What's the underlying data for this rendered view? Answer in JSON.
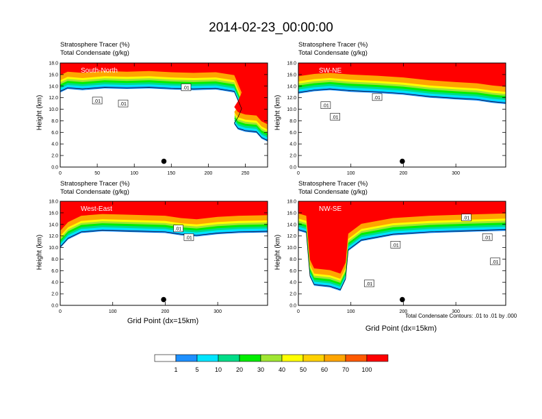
{
  "figure": {
    "title": "2014-02-23_00:00:00",
    "footnote": "Total Condensate Contours: .01 to .01 by .000"
  },
  "colorbar": {
    "colors": [
      "#ffffff",
      "#1e90ff",
      "#00e5ff",
      "#00dd88",
      "#00ee00",
      "#a0e632",
      "#ffff00",
      "#ffd100",
      "#ffa500",
      "#ff5a00",
      "#ff0000"
    ],
    "labels": [
      "1",
      "5",
      "10",
      "20",
      "30",
      "40",
      "50",
      "60",
      "70",
      "100"
    ]
  },
  "chart_data": [
    {
      "type": "heatmap",
      "label_left": "Stratosphere Tracer   (%)",
      "label_left2": "Total Condensate   (g/kg)",
      "panel_title": "South-North",
      "ylabel": "Height (km)",
      "xlabel": "",
      "xlim": [
        0,
        280
      ],
      "ylim": [
        0,
        18
      ],
      "xticks": [
        "0",
        "50",
        "100",
        "150",
        "200",
        "250"
      ],
      "xtick_values": [
        0,
        50,
        100,
        150,
        200,
        250
      ],
      "yticks": [
        "0.0",
        "2.0",
        "4.0",
        "6.0",
        "8.0",
        "10.0",
        "12.0",
        "14.0",
        "16.0",
        "18.0"
      ],
      "contour_labels": [
        ".01",
        ".01",
        ".01"
      ],
      "contour_label_xy": [
        [
          50,
          11.5
        ],
        [
          85,
          11.0
        ],
        [
          170,
          13.8
        ]
      ],
      "marker_x": 140,
      "marker_y": 1.0,
      "tropopause": [
        [
          0,
          15.0
        ],
        [
          10,
          15.6
        ],
        [
          30,
          15.4
        ],
        [
          60,
          15.7
        ],
        [
          90,
          15.6
        ],
        [
          120,
          15.7
        ],
        [
          150,
          15.5
        ],
        [
          180,
          15.4
        ],
        [
          210,
          15.5
        ],
        [
          235,
          15.0
        ],
        [
          240,
          13.5
        ],
        [
          245,
          12.0
        ],
        [
          240,
          10.5
        ],
        [
          235,
          9.5
        ],
        [
          240,
          8.6
        ],
        [
          250,
          8.2
        ],
        [
          265,
          8.0
        ],
        [
          272,
          7.0
        ],
        [
          280,
          6.5
        ]
      ]
    },
    {
      "type": "heatmap",
      "label_left": "Stratosphere Tracer   (%)",
      "label_left2": "Total Condensate   (g/kg)",
      "panel_title": "SW-NE",
      "ylabel": "Height (km)",
      "xlabel": "",
      "xlim": [
        0,
        395
      ],
      "ylim": [
        0,
        18
      ],
      "xticks": [
        "0",
        "100",
        "200",
        "300"
      ],
      "xtick_values": [
        0,
        100,
        200,
        300
      ],
      "yticks": [
        "0.0",
        "2.0",
        "4.0",
        "6.0",
        "8.0",
        "10.0",
        "12.0",
        "14.0",
        "16.0",
        "18.0"
      ],
      "contour_labels": [
        ".01",
        ".01",
        ".01"
      ],
      "contour_label_xy": [
        [
          52,
          10.7
        ],
        [
          70,
          8.7
        ],
        [
          150,
          12.1
        ]
      ],
      "marker_x": 198,
      "marker_y": 1.0,
      "tropopause": [
        [
          0,
          14.8
        ],
        [
          30,
          15.2
        ],
        [
          60,
          15.4
        ],
        [
          100,
          15.1
        ],
        [
          150,
          14.9
        ],
        [
          200,
          14.6
        ],
        [
          250,
          14.1
        ],
        [
          300,
          13.8
        ],
        [
          340,
          13.6
        ],
        [
          370,
          13.2
        ],
        [
          395,
          13.0
        ]
      ]
    },
    {
      "type": "heatmap",
      "label_left": "Stratosphere Tracer   (%)",
      "label_left2": "Total Condensate   (g/kg)",
      "panel_title": "West-East",
      "ylabel": "Height (km)",
      "xlabel": "Grid Point (dx=15km)",
      "xlim": [
        0,
        395
      ],
      "ylim": [
        0,
        18
      ],
      "xticks": [
        "0",
        "100",
        "200",
        "300"
      ],
      "xtick_values": [
        0,
        100,
        200,
        300
      ],
      "yticks": [
        "0.0",
        "2.0",
        "4.0",
        "6.0",
        "8.0",
        "10.0",
        "12.0",
        "14.0",
        "16.0",
        "18.0"
      ],
      "contour_labels": [
        ".01",
        ".01"
      ],
      "contour_label_xy": [
        [
          225,
          13.3
        ],
        [
          245,
          11.8
        ]
      ],
      "marker_x": 197,
      "marker_y": 1.0,
      "tropopause": [
        [
          0,
          12.0
        ],
        [
          15,
          13.5
        ],
        [
          40,
          14.6
        ],
        [
          80,
          14.9
        ],
        [
          120,
          14.8
        ],
        [
          160,
          14.7
        ],
        [
          200,
          14.6
        ],
        [
          230,
          14.2
        ],
        [
          260,
          14.0
        ],
        [
          300,
          14.4
        ],
        [
          340,
          14.6
        ],
        [
          395,
          14.7
        ]
      ]
    },
    {
      "type": "heatmap",
      "label_left": "Stratosphere Tracer   (%)",
      "label_left2": "Total Condensate   (g/kg)",
      "panel_title": "NW-SE",
      "ylabel": "Height (km)",
      "xlabel": "Grid Point (dx=15km)",
      "xlim": [
        0,
        395
      ],
      "ylim": [
        0,
        18
      ],
      "xticks": [
        "0",
        "100",
        "200",
        "300"
      ],
      "xtick_values": [
        0,
        100,
        200,
        300
      ],
      "yticks": [
        "0.0",
        "2.0",
        "4.0",
        "6.0",
        "8.0",
        "10.0",
        "12.0",
        "14.0",
        "16.0",
        "18.0"
      ],
      "contour_labels": [
        ".01",
        ".01",
        ".01",
        ".01",
        ".01"
      ],
      "contour_label_xy": [
        [
          135,
          3.8
        ],
        [
          185,
          10.5
        ],
        [
          320,
          15.2
        ],
        [
          360,
          11.8
        ],
        [
          375,
          7.6
        ]
      ],
      "marker_x": 198,
      "marker_y": 1.0,
      "tropopause": [
        [
          0,
          15.0
        ],
        [
          15,
          14.6
        ],
        [
          22,
          7.0
        ],
        [
          30,
          5.5
        ],
        [
          60,
          5.2
        ],
        [
          80,
          4.6
        ],
        [
          90,
          6.5
        ],
        [
          95,
          11.5
        ],
        [
          120,
          13.2
        ],
        [
          180,
          14.2
        ],
        [
          250,
          14.6
        ],
        [
          320,
          14.8
        ],
        [
          395,
          15.0
        ]
      ]
    }
  ]
}
